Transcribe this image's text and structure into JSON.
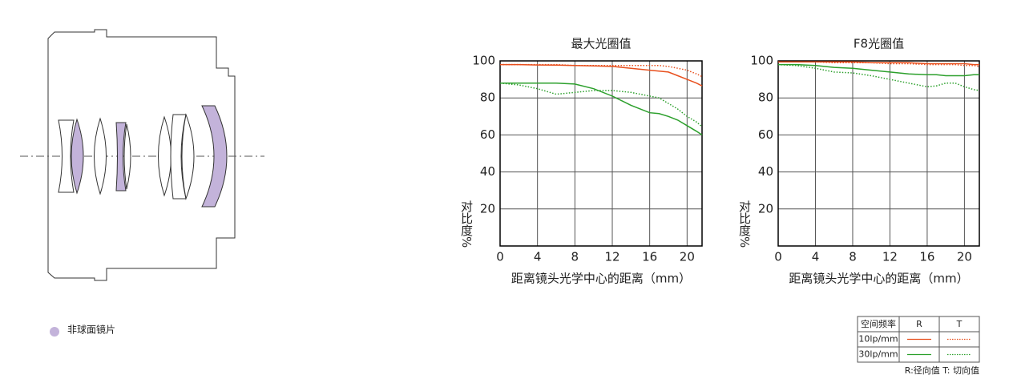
{
  "chart_data": [
    {
      "type": "line",
      "title": "最大光圈值",
      "x_label": "距离镜头光学中心的距离（mm）",
      "y_label": "对比度%",
      "x": [
        0,
        2,
        4,
        6,
        8,
        10,
        12,
        14,
        16,
        17,
        18,
        19,
        20,
        21,
        21.6
      ],
      "xlim": [
        0,
        21.6
      ],
      "xticks": [
        0,
        4,
        8,
        12,
        16,
        20
      ],
      "ylim": [
        0,
        100
      ],
      "yticks": [
        20,
        40,
        60,
        80,
        100
      ],
      "grid": true,
      "series": [
        {
          "color": "#e8501e",
          "dash": "solid",
          "values": [
            98,
            98,
            97.8,
            97.7,
            97.5,
            97.3,
            97,
            96,
            95,
            94.5,
            94,
            92,
            90,
            88,
            86.5
          ]
        },
        {
          "color": "#e8501e",
          "dash": "dotted",
          "values": [
            98,
            98,
            98,
            98,
            97.5,
            97.5,
            97.5,
            97.5,
            97.5,
            97.5,
            97,
            96,
            95,
            93,
            91.5
          ]
        },
        {
          "color": "#2ca02c",
          "dash": "solid",
          "values": [
            88,
            88,
            88,
            88,
            87.5,
            85,
            81,
            76,
            72,
            71.5,
            70,
            68,
            65,
            62,
            60
          ]
        },
        {
          "color": "#2ca02c",
          "dash": "dotted",
          "values": [
            88,
            87,
            85,
            82,
            83,
            84,
            84,
            83,
            81,
            80,
            77,
            74,
            70,
            67,
            64.5
          ]
        }
      ]
    },
    {
      "type": "line",
      "title": "F8光圈值",
      "x_label": "距离镜头光学中心的距离（mm）",
      "y_label": "对比度%",
      "x": [
        0,
        2,
        4,
        6,
        8,
        10,
        12,
        14,
        16,
        17,
        18,
        19,
        20,
        21,
        21.6
      ],
      "xlim": [
        0,
        21.6
      ],
      "xticks": [
        0,
        4,
        8,
        12,
        16,
        20
      ],
      "ylim": [
        0,
        100
      ],
      "yticks": [
        20,
        40,
        60,
        80,
        100
      ],
      "grid": true,
      "series": [
        {
          "color": "#e8501e",
          "dash": "solid",
          "values": [
            99.5,
            99.5,
            99.5,
            99.5,
            99.5,
            99,
            99,
            99,
            98.5,
            98.5,
            98.5,
            98.5,
            98.5,
            98,
            98
          ]
        },
        {
          "color": "#e8501e",
          "dash": "dotted",
          "values": [
            99.5,
            99.5,
            99.5,
            99,
            99,
            99,
            98.5,
            98.5,
            98,
            98,
            98,
            98,
            97.5,
            97.5,
            97
          ]
        },
        {
          "color": "#2ca02c",
          "dash": "solid",
          "values": [
            98,
            98,
            97.5,
            96.5,
            96,
            95,
            94,
            93,
            92.5,
            92.5,
            92,
            92,
            92,
            92.5,
            92.5
          ]
        },
        {
          "color": "#2ca02c",
          "dash": "dotted",
          "values": [
            98,
            97.5,
            96,
            94,
            93.5,
            92,
            90,
            88,
            86,
            86.5,
            88,
            88,
            86,
            84.5,
            84
          ]
        }
      ]
    }
  ],
  "diagram": {
    "legend_label": "非球面镜片",
    "legend_color": "#c3b3da"
  },
  "legend_table": {
    "header": [
      "空间频率",
      "R",
      "T"
    ],
    "rows": [
      "10lp/mm",
      "30lp/mm"
    ],
    "note": "R:径向值 T:  切向值"
  }
}
